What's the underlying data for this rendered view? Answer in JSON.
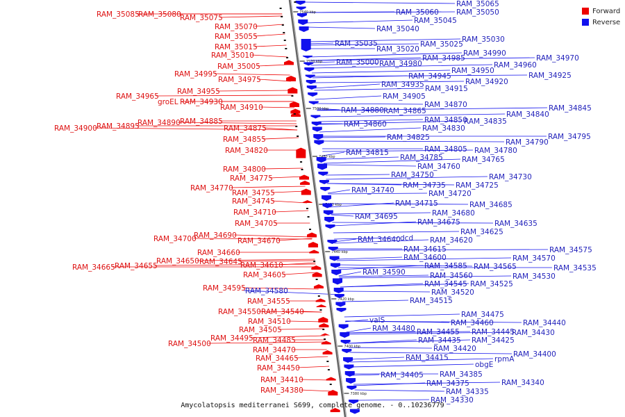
{
  "caption": "Amycolatopsis mediterranei S699, complete genome. - 0..10236779",
  "legend": [
    {
      "label": "Forward",
      "color": "#ee0000"
    },
    {
      "label": "Reverse",
      "color": "#1111ee"
    }
  ],
  "scale_labels": [
    "7540 kbp",
    "7520 kbp",
    "7500 kbp",
    "7480 kbp",
    "7460 kbp",
    "7440 kbp",
    "7420 kbp",
    "7400 kbp",
    "7380 kbp"
  ],
  "forward_labels": [
    "RAM_35085",
    "RAM_35080",
    "RAM_35075",
    "RAM_35070",
    "RAM_35055",
    "RAM_35015",
    "RAM_35010",
    "RAM_35005",
    "RAM_34995",
    "RAM_34975",
    "RAM_34965",
    "RAM_34955",
    "groEL",
    "RAM_34930",
    "RAM_34910",
    "RAM_34900",
    "RAM_34895",
    "RAM_34890",
    "RAM_34885",
    "RAM_34875",
    "RAM_34855",
    "RAM_34820",
    "RAM_34800",
    "RAM_34775",
    "RAM_34770",
    "RAM_34755",
    "RAM_34745",
    "RAM_34710",
    "RAM_34705",
    "RAM_34700",
    "RAM_34690",
    "RAM_34670",
    "RAM_34660",
    "RAM_34665",
    "RAM_34655",
    "RAM_34650",
    "RAM_34645",
    "RAM_34610",
    "RAM_34605",
    "RAM_34595",
    "RAM_34555",
    "RAM_34550",
    "RAM_34540",
    "RAM_34510",
    "RAM_34505",
    "RAM_34495",
    "RAM_34485",
    "RAM_34500",
    "RAM_34470",
    "RAM_34465",
    "RAM_34450",
    "RAM_34410",
    "RAM_34380"
  ],
  "reverse_labels": [
    "RAM_35065",
    "RAM_35060",
    "RAM_35050",
    "RAM_35045",
    "RAM_35040",
    "RAM_35030",
    "RAM_35035",
    "RAM_35025",
    "RAM_35020",
    "RAM_34990",
    "RAM_34985",
    "RAM_34970",
    "RAM_35000",
    "RAM_34980",
    "RAM_34960",
    "RAM_34950",
    "RAM_34945",
    "RAM_34925",
    "RAM_34920",
    "RAM_34935",
    "RAM_34915",
    "RAM_34905",
    "RAM_34870",
    "RAM_34880",
    "RAM_34865",
    "RAM_34845",
    "RAM_34840",
    "RAM_34860",
    "RAM_34850",
    "RAM_34835",
    "RAM_34830",
    "RAM_34825",
    "RAM_34795",
    "RAM_34790",
    "RAM_34815",
    "RAM_34805",
    "RAM_34780",
    "RAM_34785",
    "RAM_34765",
    "RAM_34760",
    "RAM_34750",
    "RAM_34730",
    "RAM_34735",
    "RAM_34725",
    "RAM_34740",
    "RAM_34720",
    "RAM_34715",
    "RAM_34685",
    "RAM_34680",
    "RAM_34695",
    "RAM_34675",
    "RAM_34635",
    "RAM_34625",
    "RAM_34640",
    "dcd",
    "RAM_34620",
    "RAM_34615",
    "RAM_34575",
    "RAM_34600",
    "RAM_34570",
    "RAM_34585",
    "RAM_34565",
    "RAM_34535",
    "RAM_34590",
    "RAM_34560",
    "RAM_34530",
    "RAM_34545",
    "RAM_34525",
    "RAM_34520",
    "RAM_34580",
    "RAM_34515",
    "RAM_34475",
    "valS",
    "RAM_34460",
    "RAM_34440",
    "RAM_34480",
    "RAM_34455",
    "RAM_34445",
    "RAM_34430",
    "RAM_34435",
    "RAM_34425",
    "RAM_34420",
    "RAM_34400",
    "RAM_34415",
    "rpmA",
    "obgE",
    "RAM_34405",
    "RAM_34385",
    "RAM_34375",
    "RAM_34340",
    "RAM_34335",
    "RAM_34330"
  ]
}
